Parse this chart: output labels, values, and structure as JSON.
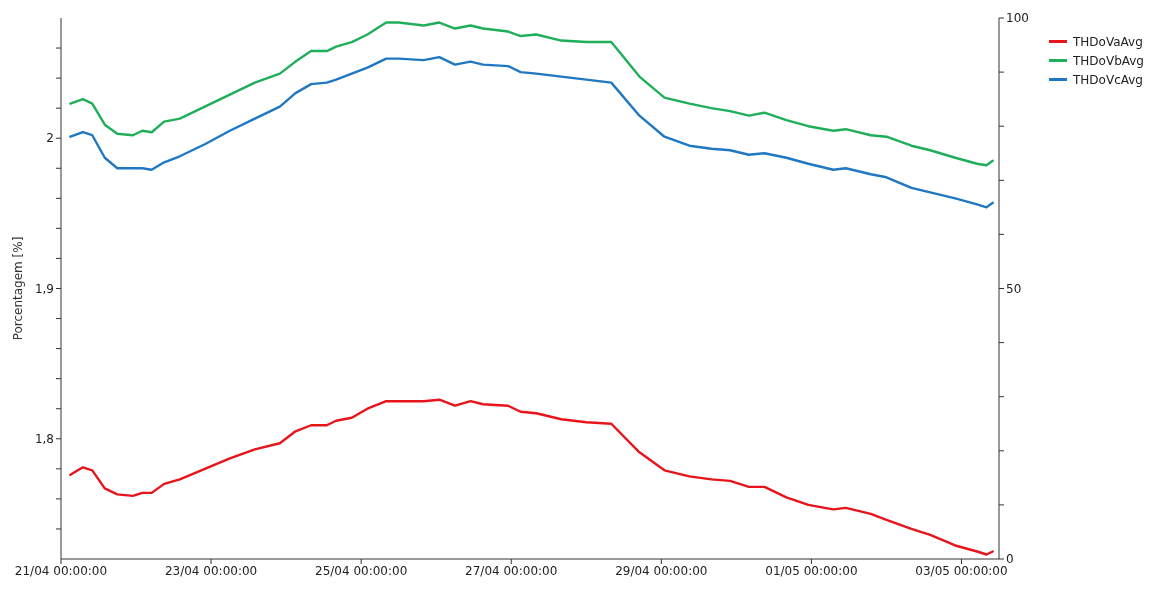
{
  "chart_data": {
    "type": "line",
    "ylabel": "Porcentagem [%]",
    "legend": "top right",
    "x": [
      "--04-21T03:00",
      "--04-21T07:00",
      "--04-21T10:00",
      "--04-21T14:00",
      "--04-21T18:00",
      "--04-21T23:00",
      "--04-22T02:00",
      "--04-22T05:00",
      "--04-22T09:00",
      "--04-22T14:00",
      "--04-22T22:00",
      "--04-23T06:00",
      "--04-23T14:00",
      "--04-23T22:00",
      "--04-24T03:00",
      "--04-24T08:00",
      "--04-24T13:00",
      "--04-24T16:00",
      "--04-24T21:00",
      "--04-25T02:00",
      "--04-25T08:00",
      "--04-25T12:00",
      "--04-25T20:00",
      "--04-26T01:00",
      "--04-26T06:00",
      "--04-26T11:00",
      "--04-26T15:00",
      "--04-26T23:00",
      "--04-27T03:00",
      "--04-27T08:00",
      "--04-27T16:00",
      "--04-28T00:00",
      "--04-28T08:00",
      "--04-28T17:00",
      "--04-29T01:00",
      "--04-29T09:00",
      "--04-29T16:00",
      "--04-29T22:00",
      "--04-30T04:00",
      "--04-30T09:00",
      "--04-30T16:00",
      "--04-30T23:00",
      "--05-01T07:00",
      "--05-01T11:00",
      "--05-01T19:00",
      "--05-02T00:00",
      "--05-02T08:00",
      "--05-02T14:00",
      "--05-02T22:00",
      "--05-03T05:00",
      "--05-03T08:00",
      "--05-03T10:00"
    ],
    "series": [
      {
        "name": "THDoVaAvg",
        "color": "#e8141c",
        "values": [
          1.776,
          1.781,
          1.779,
          1.767,
          1.763,
          1.762,
          1.764,
          1.764,
          1.77,
          1.773,
          1.78,
          1.787,
          1.793,
          1.797,
          1.805,
          1.809,
          1.809,
          1.812,
          1.814,
          1.82,
          1.825,
          1.825,
          1.825,
          1.826,
          1.822,
          1.825,
          1.823,
          1.822,
          1.818,
          1.817,
          1.813,
          1.811,
          1.81,
          1.791,
          1.779,
          1.775,
          1.773,
          1.772,
          1.768,
          1.768,
          1.761,
          1.756,
          1.753,
          1.754,
          1.75,
          1.746,
          1.74,
          1.736,
          1.729,
          1.725,
          1.723,
          1.725
        ]
      },
      {
        "name": "THDoVbAvg",
        "color": "#1fae5a",
        "values": [
          2.023,
          2.026,
          2.023,
          2.009,
          2.003,
          2.002,
          2.005,
          2.004,
          2.011,
          2.013,
          2.021,
          2.029,
          2.037,
          2.043,
          2.051,
          2.058,
          2.058,
          2.061,
          2.064,
          2.069,
          2.077,
          2.077,
          2.075,
          2.077,
          2.073,
          2.075,
          2.073,
          2.071,
          2.068,
          2.069,
          2.065,
          2.064,
          2.064,
          2.041,
          2.027,
          2.023,
          2.02,
          2.018,
          2.015,
          2.017,
          2.012,
          2.008,
          2.005,
          2.006,
          2.002,
          2.001,
          1.995,
          1.992,
          1.987,
          1.983,
          1.982,
          1.985
        ]
      },
      {
        "name": "THDoVcAvg",
        "color": "#1f78c1",
        "values": [
          2.001,
          2.004,
          2.002,
          1.987,
          1.98,
          1.98,
          1.98,
          1.979,
          1.984,
          1.988,
          1.996,
          2.005,
          2.013,
          2.021,
          2.03,
          2.036,
          2.037,
          2.039,
          2.043,
          2.047,
          2.053,
          2.053,
          2.052,
          2.054,
          2.049,
          2.051,
          2.049,
          2.048,
          2.044,
          2.043,
          2.041,
          2.039,
          2.037,
          2.015,
          2.001,
          1.995,
          1.993,
          1.992,
          1.989,
          1.99,
          1.987,
          1.983,
          1.979,
          1.98,
          1.976,
          1.974,
          1.967,
          1.964,
          1.96,
          1.956,
          1.954,
          1.957
        ]
      }
    ],
    "xlim": [
      "--04-21T00:00",
      "--05-03T12:00"
    ],
    "xticks": [
      {
        "value": "--04-21T00:00",
        "label": "21/04 00:00:00"
      },
      {
        "value": "--04-23T00:00",
        "label": "23/04 00:00:00"
      },
      {
        "value": "--04-25T00:00",
        "label": "25/04 00:00:00"
      },
      {
        "value": "--04-27T00:00",
        "label": "27/04 00:00:00"
      },
      {
        "value": "--04-29T00:00",
        "label": "29/04 00:00:00"
      },
      {
        "value": "--05-01T00:00",
        "label": "01/05 00:00:00"
      },
      {
        "value": "--05-03T00:00",
        "label": "03/05 00:00:00"
      }
    ],
    "ylim": [
      1.72,
      2.08
    ],
    "yticks": [
      {
        "value": 1.74,
        "label": null
      },
      {
        "value": 1.76,
        "label": null
      },
      {
        "value": 1.78,
        "label": null
      },
      {
        "value": 1.8,
        "label": "1,8"
      },
      {
        "value": 1.82,
        "label": null
      },
      {
        "value": 1.84,
        "label": null
      },
      {
        "value": 1.86,
        "label": null
      },
      {
        "value": 1.88,
        "label": null
      },
      {
        "value": 1.9,
        "label": "1,9"
      },
      {
        "value": 1.92,
        "label": null
      },
      {
        "value": 1.94,
        "label": null
      },
      {
        "value": 1.96,
        "label": null
      },
      {
        "value": 1.98,
        "label": null
      },
      2,
      {
        "value": 2.02,
        "label": null
      },
      {
        "value": 2.04,
        "label": null
      },
      {
        "value": 2.06,
        "label": null
      }
    ],
    "y2lim": [
      0,
      100
    ],
    "y2ticks": [
      0,
      {
        "value": 10,
        "label": null
      },
      {
        "value": 20,
        "label": null
      },
      {
        "value": 30,
        "label": null
      },
      {
        "value": 40,
        "label": null
      },
      50,
      {
        "value": 60,
        "label": null
      },
      {
        "value": 70,
        "label": null
      },
      {
        "value": 80,
        "label": null
      },
      {
        "value": 90,
        "label": null
      },
      100
    ]
  }
}
